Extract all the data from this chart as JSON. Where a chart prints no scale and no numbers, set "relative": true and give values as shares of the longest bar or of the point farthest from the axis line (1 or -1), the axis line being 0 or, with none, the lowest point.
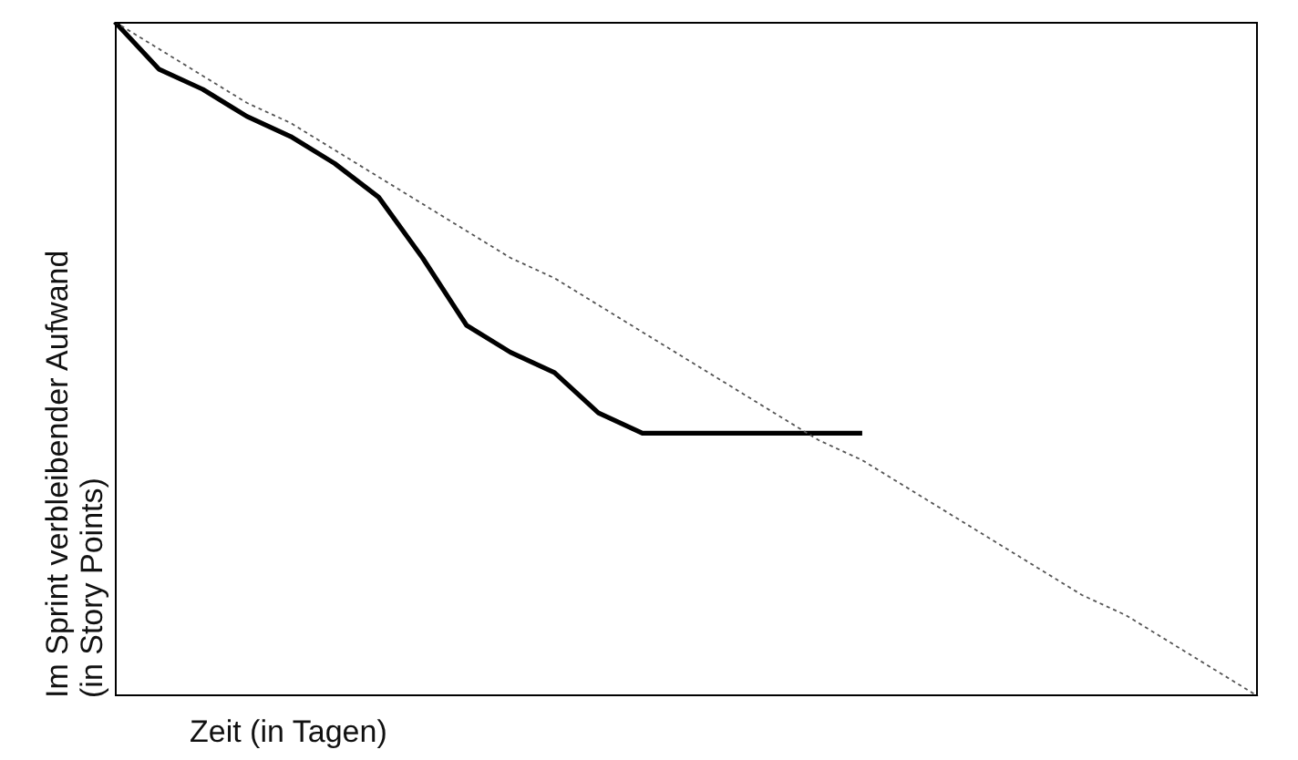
{
  "chart_data": {
    "type": "line",
    "relative": true,
    "xlabel": "Zeit (in Tagen)",
    "ylabel": "Im Sprint verbleibender Aufwand\n(in Story Points)",
    "categories": [
      null,
      null,
      null,
      null,
      null,
      null,
      null,
      null,
      null,
      null,
      null,
      null,
      null,
      null,
      null,
      null,
      null,
      null,
      null,
      null,
      null,
      null,
      null,
      null,
      null,
      null,
      null
    ],
    "series": [
      {
        "color": "#000000",
        "values": [
          1.0,
          0.93,
          0.9,
          0.86,
          0.83,
          0.79,
          0.74,
          0.65,
          0.55,
          0.51,
          0.48,
          0.42,
          0.39,
          0.39,
          0.39,
          0.39,
          0.39,
          0.39,
          null,
          null,
          null,
          null,
          null,
          null,
          null,
          null,
          null
        ]
      },
      {
        "color": "#555555",
        "line_style": "dotted",
        "values": [
          1.0,
          0.96,
          0.92,
          0.88,
          0.85,
          0.81,
          0.77,
          0.73,
          0.69,
          0.65,
          0.62,
          0.58,
          0.54,
          0.5,
          0.46,
          0.42,
          0.38,
          0.35,
          0.31,
          0.27,
          0.23,
          0.19,
          0.15,
          0.12,
          0.08,
          0.04,
          0.0
        ]
      }
    ]
  }
}
